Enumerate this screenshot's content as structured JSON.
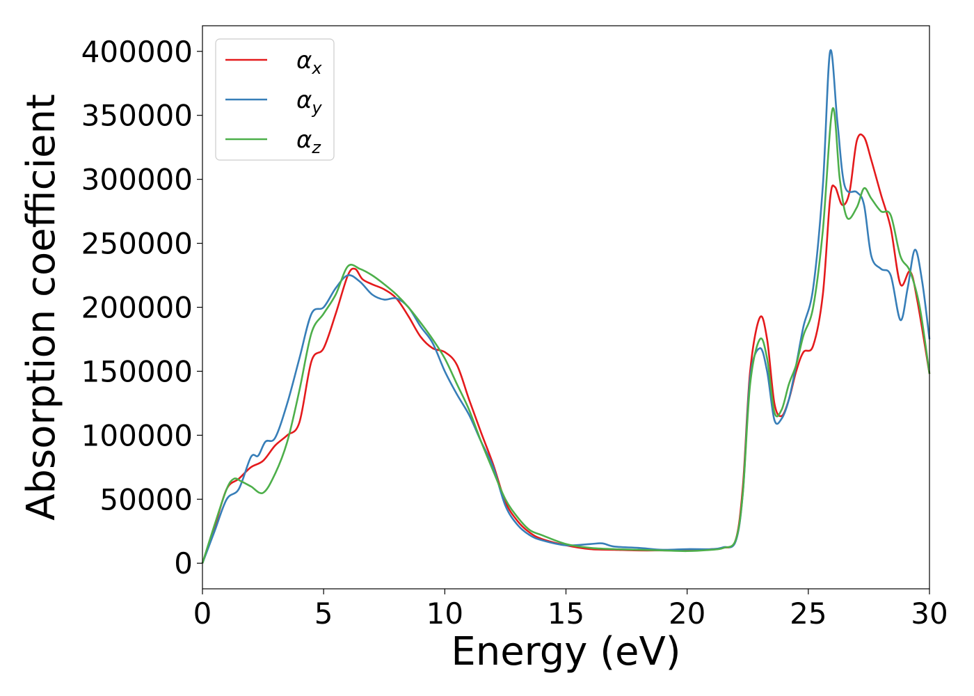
{
  "chart_data": {
    "type": "line",
    "title": "",
    "xlabel": "Energy (eV)",
    "ylabel": "Absorption coefficient",
    "xlim": [
      0,
      30
    ],
    "ylim": [
      -20000,
      420000
    ],
    "xticks": [
      0,
      5,
      10,
      15,
      20,
      25,
      30
    ],
    "yticks": [
      0,
      50000,
      100000,
      150000,
      200000,
      250000,
      300000,
      350000,
      400000
    ],
    "grid": false,
    "legend": "top-left",
    "series": [
      {
        "name": "αx",
        "legend_base": "α",
        "legend_sub": "x",
        "color": "#e41a1c",
        "x": [
          0,
          0.5,
          1.0,
          1.5,
          2.0,
          2.5,
          3.0,
          3.5,
          4.0,
          4.5,
          5.0,
          5.5,
          6.0,
          6.3,
          6.6,
          7.0,
          7.5,
          8.0,
          8.5,
          9.0,
          9.5,
          10.0,
          10.5,
          11.0,
          11.5,
          12.0,
          12.5,
          13.0,
          13.5,
          14.0,
          15.0,
          16.0,
          17.0,
          18.0,
          19.0,
          20.0,
          21.0,
          21.5,
          22.0,
          22.3,
          22.6,
          23.0,
          23.3,
          23.6,
          23.9,
          24.2,
          24.5,
          24.8,
          25.2,
          25.6,
          25.9,
          26.1,
          26.4,
          26.7,
          27.0,
          27.3,
          27.6,
          28.0,
          28.4,
          28.8,
          29.2,
          29.5,
          30.0
        ],
        "y": [
          0,
          28000,
          58000,
          66000,
          75000,
          80000,
          92000,
          100000,
          110000,
          158000,
          168000,
          195000,
          225000,
          230000,
          222000,
          218000,
          214000,
          207000,
          193000,
          177000,
          168000,
          165000,
          155000,
          128000,
          102000,
          77000,
          48000,
          33000,
          24000,
          19000,
          14000,
          11000,
          10500,
          10000,
          10000,
          10000,
          11000,
          12000,
          18000,
          60000,
          150000,
          192000,
          175000,
          125000,
          115000,
          128000,
          150000,
          165000,
          170000,
          210000,
          285000,
          294000,
          280000,
          290000,
          330000,
          333000,
          315000,
          288000,
          262000,
          218000,
          228000,
          205000,
          148000
        ]
      },
      {
        "name": "αy",
        "legend_base": "α",
        "legend_sub": "y",
        "color": "#377eb8",
        "x": [
          0,
          0.5,
          1.0,
          1.5,
          2.0,
          2.3,
          2.6,
          3.0,
          3.5,
          4.0,
          4.5,
          5.0,
          5.5,
          6.0,
          6.5,
          7.0,
          7.5,
          8.0,
          8.5,
          9.0,
          9.5,
          10.0,
          10.5,
          11.0,
          11.5,
          12.0,
          12.5,
          13.0,
          13.5,
          14.0,
          15.0,
          16.0,
          16.5,
          17.0,
          18.0,
          19.0,
          20.0,
          21.0,
          21.5,
          22.0,
          22.3,
          22.6,
          23.0,
          23.3,
          23.6,
          23.9,
          24.2,
          24.5,
          24.8,
          25.2,
          25.6,
          25.9,
          26.2,
          26.5,
          27.0,
          27.3,
          27.6,
          28.0,
          28.4,
          28.8,
          29.1,
          29.4,
          29.7,
          30.0
        ],
        "y": [
          0,
          25000,
          50000,
          58000,
          83000,
          84000,
          95000,
          98000,
          125000,
          160000,
          195000,
          200000,
          215000,
          225000,
          220000,
          210000,
          206000,
          207000,
          200000,
          185000,
          172000,
          150000,
          132000,
          116000,
          95000,
          75000,
          45000,
          30000,
          22000,
          18000,
          14000,
          15000,
          15500,
          13000,
          12000,
          10500,
          11000,
          11000,
          12500,
          17000,
          55000,
          145000,
          168000,
          150000,
          112000,
          113000,
          128000,
          155000,
          185000,
          215000,
          295000,
          400000,
          345000,
          295000,
          290000,
          280000,
          240000,
          230000,
          225000,
          190000,
          215000,
          245000,
          220000,
          175000
        ]
      },
      {
        "name": "αz",
        "legend_base": "α",
        "legend_sub": "z",
        "color": "#4daf4a",
        "x": [
          0,
          0.5,
          1.0,
          1.3,
          1.6,
          2.0,
          2.5,
          3.0,
          3.5,
          4.0,
          4.5,
          5.0,
          5.5,
          6.0,
          6.5,
          7.0,
          7.5,
          8.0,
          8.5,
          9.0,
          9.5,
          10.0,
          10.5,
          11.0,
          11.5,
          12.0,
          12.5,
          13.0,
          13.5,
          14.0,
          15.0,
          16.0,
          17.0,
          18.0,
          19.0,
          20.0,
          21.0,
          21.5,
          22.0,
          22.3,
          22.6,
          23.0,
          23.3,
          23.6,
          23.9,
          24.2,
          24.5,
          24.8,
          25.2,
          25.6,
          26.0,
          26.3,
          26.6,
          27.0,
          27.3,
          27.6,
          28.0,
          28.4,
          28.8,
          29.2,
          29.6,
          30.0
        ],
        "y": [
          0,
          30000,
          58000,
          66000,
          64000,
          60000,
          55000,
          70000,
          95000,
          135000,
          180000,
          195000,
          210000,
          232000,
          230000,
          225000,
          218000,
          210000,
          200000,
          188000,
          175000,
          160000,
          140000,
          120000,
          95000,
          72000,
          50000,
          36000,
          26000,
          22000,
          15000,
          12000,
          11000,
          10500,
          10000,
          9500,
          10500,
          12000,
          18000,
          55000,
          140000,
          175000,
          160000,
          118000,
          120000,
          140000,
          155000,
          178000,
          200000,
          260000,
          355000,
          300000,
          270000,
          278000,
          293000,
          285000,
          275000,
          272000,
          240000,
          228000,
          200000,
          148000
        ]
      }
    ]
  }
}
